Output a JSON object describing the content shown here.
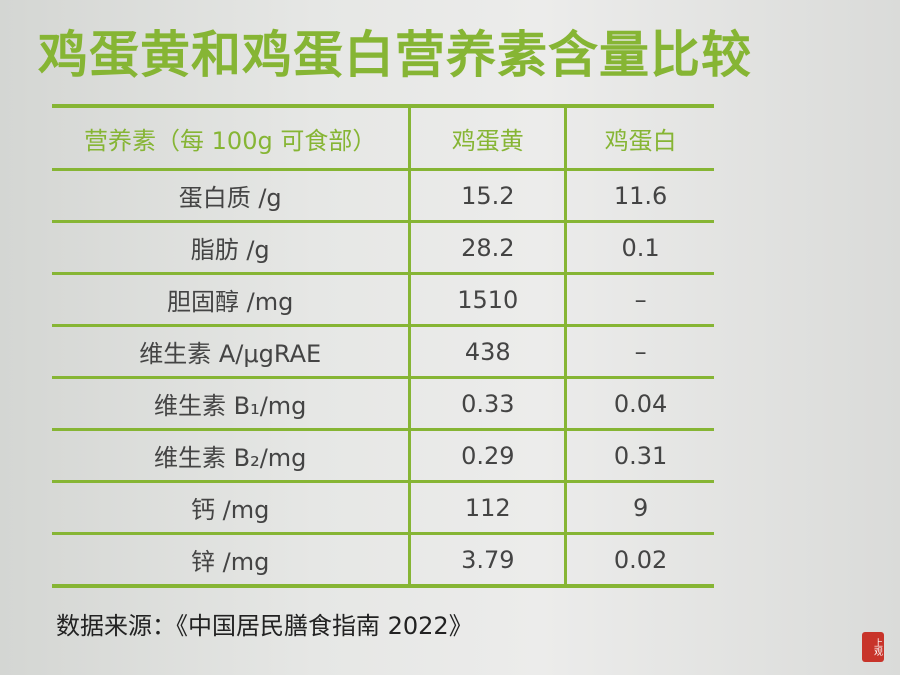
{
  "title": "鸡蛋黄和鸡蛋白营养素含量比较",
  "table": {
    "headers": [
      "营养素（每 100g 可食部）",
      "鸡蛋黄",
      "鸡蛋白"
    ],
    "rows": [
      {
        "nutrient": "蛋白质 /g",
        "yolk": "15.2",
        "white": "11.6"
      },
      {
        "nutrient": "脂肪 /g",
        "yolk": "28.2",
        "white": "0.1"
      },
      {
        "nutrient": "胆固醇 /mg",
        "yolk": "1510",
        "white": "–"
      },
      {
        "nutrient": "维生素 A/μgRAE",
        "yolk": "438",
        "white": "–"
      },
      {
        "nutrient": "维生素 B₁/mg",
        "yolk": "0.33",
        "white": "0.04"
      },
      {
        "nutrient": "维生素 B₂/mg",
        "yolk": "0.29",
        "white": "0.31"
      },
      {
        "nutrient": "钙 /mg",
        "yolk": "112",
        "white": "9"
      },
      {
        "nutrient": "锌 /mg",
        "yolk": "3.79",
        "white": "0.02"
      }
    ]
  },
  "source": "数据来源：《中国居民膳食指南 2022》",
  "watermark": {
    "text": "上观"
  },
  "colors": {
    "accent": "#86b534",
    "stamp": "#c8342a"
  }
}
